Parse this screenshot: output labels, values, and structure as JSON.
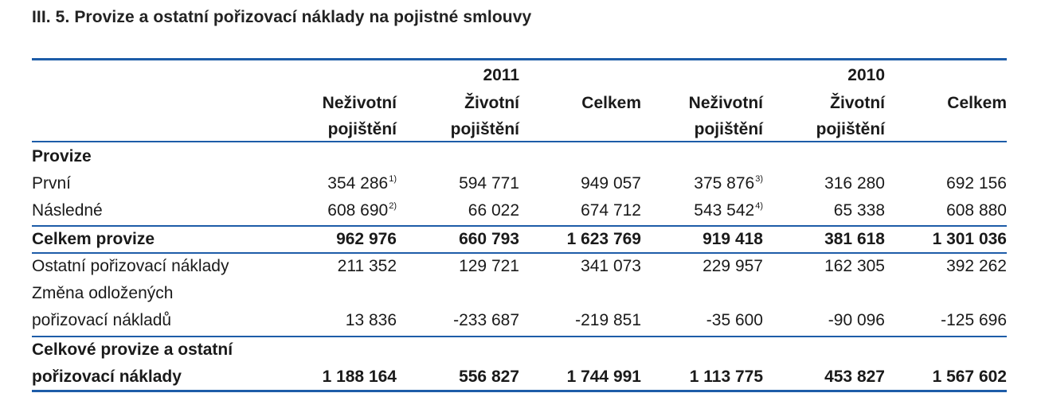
{
  "title": "III. 5. Provize a ostatní pořizovací náklady na pojistné smlouvy",
  "years": {
    "y2011": "2011",
    "y2010": "2010"
  },
  "columns": {
    "nezivotni_l1": "Neživotní",
    "nezivotni_l2": "pojištění",
    "zivotni_l1": "Životní",
    "zivotni_l2": "pojištění",
    "celkem": "Celkem"
  },
  "rows": {
    "provize_header": "Provize",
    "prvni": {
      "label": "První",
      "v": [
        "354 286",
        "594 771",
        "949 057",
        "375 876",
        "316 280",
        "692 156"
      ],
      "notes": [
        "1)",
        "",
        "",
        "3)",
        "",
        ""
      ]
    },
    "nasledne": {
      "label": "Následné",
      "v": [
        "608 690",
        "66 022",
        "674 712",
        "543 542",
        "65 338",
        "608 880"
      ],
      "notes": [
        "2)",
        "",
        "",
        "4)",
        "",
        ""
      ]
    },
    "celkem_provize": {
      "label": "Celkem provize",
      "v": [
        "962 976",
        "660 793",
        "1 623 769",
        "919 418",
        "381 618",
        "1 301 036"
      ]
    },
    "ostatni": {
      "label": "Ostatní pořizovací náklady",
      "v": [
        "211 352",
        "129 721",
        "341 073",
        "229 957",
        "162 305",
        "392 262"
      ]
    },
    "zmena": {
      "label_l1": "Změna odložených",
      "label_l2": "pořizovací nákladů",
      "v": [
        "13 836",
        "-233 687",
        "-219 851",
        "-35 600",
        "-90 096",
        "-125 696"
      ]
    },
    "celkove": {
      "label_l1": "Celkové provize a ostatní",
      "label_l2": "pořizovací náklady",
      "v": [
        "1 188 164",
        "556 827",
        "1 744 991",
        "1 113 775",
        "453 827",
        "1 567 602"
      ]
    }
  },
  "colors": {
    "rule": "#1d5ca8",
    "text": "#1a1a1a"
  }
}
